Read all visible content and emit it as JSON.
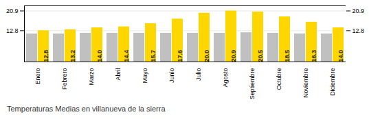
{
  "chart_data": {
    "type": "bar",
    "title": "Temperaturas Medias en villanueva de la sierra",
    "categories": [
      "Enero",
      "Febrero",
      "Marzo",
      "Abril",
      "Mayo",
      "Junio",
      "Julio",
      "Agosto",
      "Septiembre",
      "Octubre",
      "Noviembre",
      "Diciembre"
    ],
    "series": [
      {
        "color": "#C0C0C0",
        "values": [
          11.5,
          11.5,
          11.8,
          11.8,
          11.8,
          11.8,
          11.8,
          11.8,
          12.0,
          11.8,
          11.5,
          11.5
        ]
      },
      {
        "color": "#FFD700",
        "values": [
          12.8,
          13.2,
          14.0,
          14.4,
          15.7,
          17.6,
          20.0,
          20.9,
          20.5,
          18.5,
          16.3,
          14.0
        ],
        "data_labels": true,
        "value_labels": [
          "12.8",
          "13.2",
          "14.0",
          "14.4",
          "15.7",
          "17.6",
          "20.0",
          "20.9",
          "20.5",
          "18.5",
          "16.3",
          "14.0"
        ]
      }
    ],
    "ylim": [
      0,
      23.0
    ],
    "yticks": [
      12.8,
      20.9
    ],
    "grid": true
  }
}
